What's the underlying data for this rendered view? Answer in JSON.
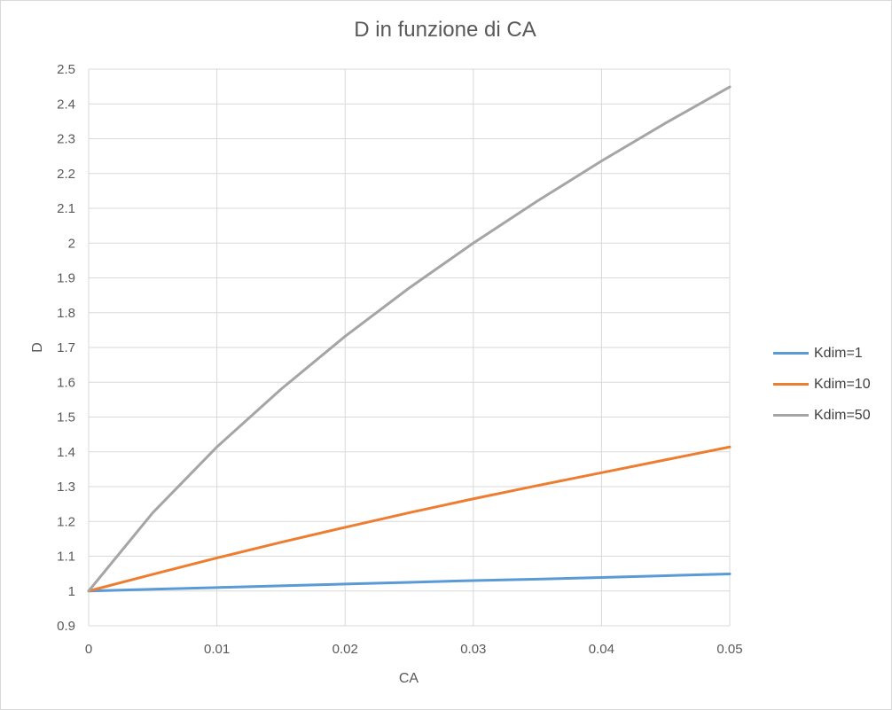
{
  "chart_data": {
    "type": "line",
    "title": "D in funzione di CA",
    "xlabel": "CA",
    "ylabel": "D",
    "xlim": [
      0,
      0.05
    ],
    "ylim": [
      0.9,
      2.5
    ],
    "xticks": [
      "0",
      "0.01",
      "0.02",
      "0.03",
      "0.04",
      "0.05"
    ],
    "xtick_values": [
      0,
      0.01,
      0.02,
      0.03,
      0.04,
      0.05
    ],
    "yticks": [
      "0.9",
      "1",
      "1.1",
      "1.2",
      "1.3",
      "1.4",
      "1.5",
      "1.6",
      "1.7",
      "1.8",
      "1.9",
      "2",
      "2.1",
      "2.2",
      "2.3",
      "2.4",
      "2.5"
    ],
    "ytick_values": [
      0.9,
      1.0,
      1.1,
      1.2,
      1.3,
      1.4,
      1.5,
      1.6,
      1.7,
      1.8,
      1.9,
      2.0,
      2.1,
      2.2,
      2.3,
      2.4,
      2.5
    ],
    "grid": true,
    "legend": "right",
    "x": [
      0,
      0.005,
      0.01,
      0.015,
      0.02,
      0.025,
      0.03,
      0.035,
      0.04,
      0.045,
      0.05
    ],
    "series": [
      {
        "name": "Kdim=1",
        "color": "#5b9bd5",
        "values": [
          1.0,
          1.005,
          1.01,
          1.015,
          1.02,
          1.025,
          1.03,
          1.034,
          1.039,
          1.044,
          1.049
        ]
      },
      {
        "name": "Kdim=10",
        "color": "#ed7d31",
        "values": [
          1.0,
          1.048,
          1.095,
          1.14,
          1.183,
          1.225,
          1.265,
          1.303,
          1.34,
          1.377,
          1.414
        ]
      },
      {
        "name": "Kdim=50",
        "color": "#a5a5a5",
        "values": [
          1.0,
          1.225,
          1.414,
          1.58,
          1.732,
          1.871,
          2.0,
          2.121,
          2.236,
          2.345,
          2.449
        ]
      }
    ]
  }
}
